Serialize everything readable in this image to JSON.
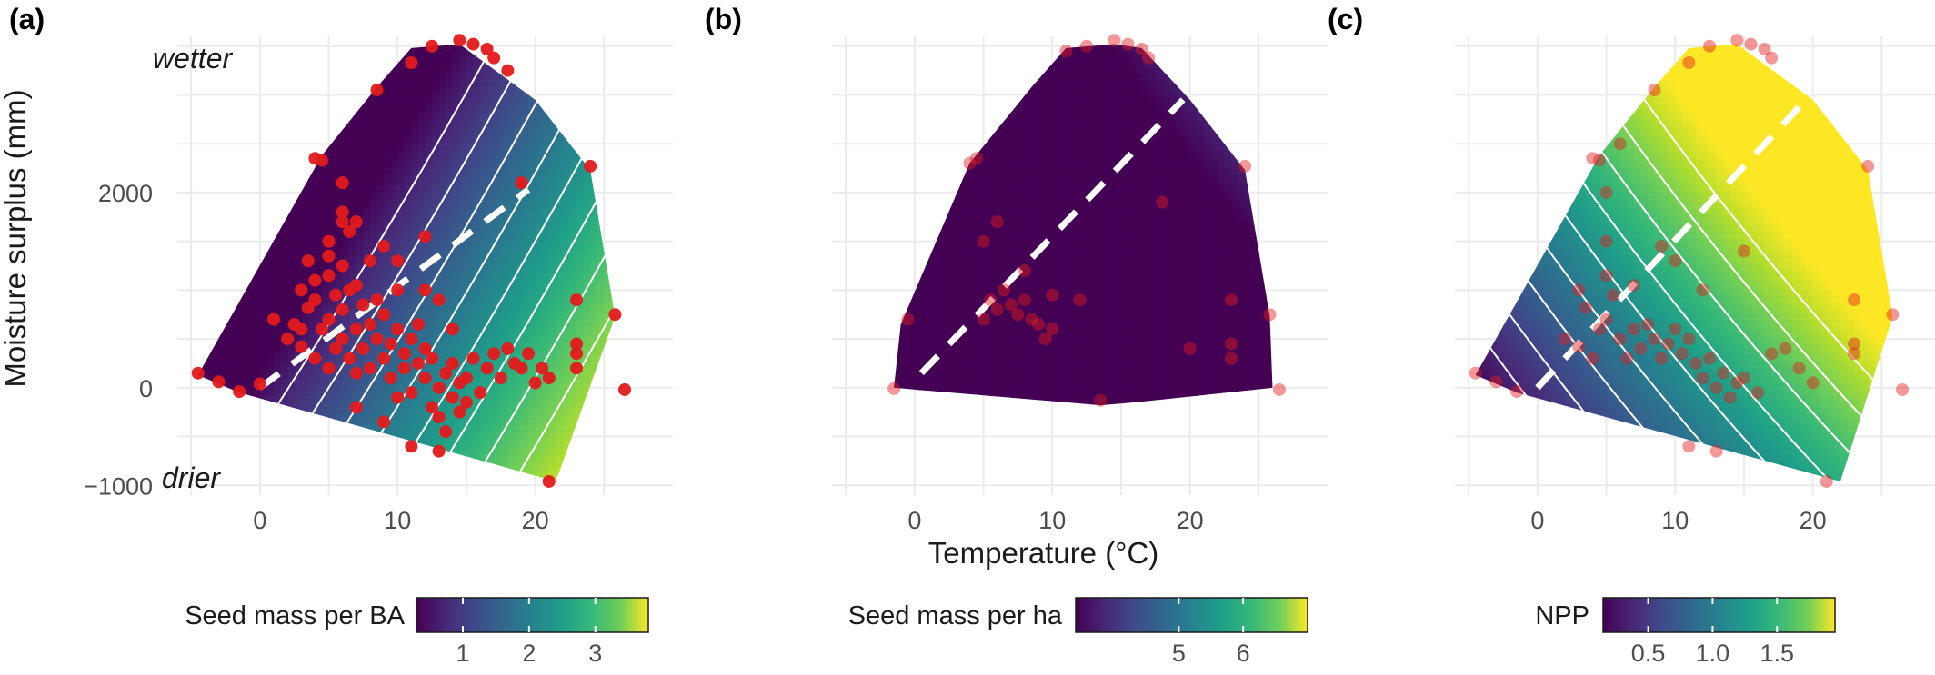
{
  "chart_data": [
    {
      "panel": "(a)",
      "type": "heatmap",
      "xlabel": "",
      "ylabel": "Moisture surplus (mm)",
      "x_ticks": [
        0,
        10,
        20
      ],
      "y_ticks": [
        -1000,
        0,
        2000
      ],
      "xlim": [
        -6,
        30
      ],
      "ylim": [
        -1100,
        3600
      ],
      "annotations": [
        "wetter",
        "drier"
      ],
      "legend": {
        "title": "Seed mass per BA",
        "ticks": [
          "1",
          "2",
          "3"
        ],
        "range": [
          0.3,
          3.8
        ],
        "colormap": "viridis"
      },
      "surface": {
        "a": 0.12,
        "b": -0.00055
      },
      "dashed_line": {
        "from": [
          0,
          0
        ],
        "to": [
          19.5,
          2030
        ]
      },
      "boundary": [
        [
          -4.5,
          130
        ],
        [
          -1.5,
          -50
        ],
        [
          21.5,
          -960
        ],
        [
          25.8,
          730
        ],
        [
          24,
          2230
        ],
        [
          20,
          2950
        ],
        [
          14.5,
          3520
        ],
        [
          11,
          3480
        ],
        [
          8.5,
          3080
        ],
        [
          4.5,
          2380
        ],
        [
          -4.5,
          130
        ]
      ],
      "points": [
        [
          -4.5,
          150
        ],
        [
          -3,
          60
        ],
        [
          -1.5,
          -40
        ],
        [
          0,
          40
        ],
        [
          1,
          700
        ],
        [
          3,
          600
        ],
        [
          4,
          2350
        ],
        [
          4.5,
          2330
        ],
        [
          5,
          1350
        ],
        [
          6,
          2100
        ],
        [
          6,
          1700
        ],
        [
          7,
          1700
        ],
        [
          6.5,
          1600
        ],
        [
          8.5,
          3050
        ],
        [
          10,
          1000
        ],
        [
          11,
          3330
        ],
        [
          12,
          1550
        ],
        [
          12.5,
          3500
        ],
        [
          13,
          900
        ],
        [
          14.5,
          3560
        ],
        [
          15.5,
          3520
        ],
        [
          16.5,
          3470
        ],
        [
          17,
          3380
        ],
        [
          18,
          3250
        ],
        [
          19,
          2100
        ],
        [
          21,
          -960
        ],
        [
          24,
          2270
        ],
        [
          23,
          900
        ],
        [
          23,
          450
        ],
        [
          23,
          350
        ],
        [
          23,
          200
        ],
        [
          25.8,
          750
        ],
        [
          26.5,
          -20
        ],
        [
          2,
          500
        ],
        [
          2.5,
          650
        ],
        [
          3,
          420
        ],
        [
          3.5,
          820
        ],
        [
          4,
          300
        ],
        [
          4,
          900
        ],
        [
          4.5,
          600
        ],
        [
          5,
          700
        ],
        [
          5,
          200
        ],
        [
          5.5,
          950
        ],
        [
          5.5,
          400
        ],
        [
          6,
          500
        ],
        [
          6,
          800
        ],
        [
          6.5,
          300
        ],
        [
          6.5,
          1000
        ],
        [
          7,
          600
        ],
        [
          7,
          150
        ],
        [
          7.5,
          400
        ],
        [
          7.5,
          850
        ],
        [
          8,
          200
        ],
        [
          8,
          650
        ],
        [
          8.5,
          500
        ],
        [
          8.5,
          900
        ],
        [
          9,
          300
        ],
        [
          9,
          750
        ],
        [
          9.5,
          100
        ],
        [
          9.5,
          450
        ],
        [
          10,
          600
        ],
        [
          10,
          -100
        ],
        [
          10.5,
          350
        ],
        [
          10.5,
          200
        ],
        [
          11,
          500
        ],
        [
          11,
          -50
        ],
        [
          11.5,
          250
        ],
        [
          11.5,
          650
        ],
        [
          12,
          100
        ],
        [
          12,
          400
        ],
        [
          12.5,
          -200
        ],
        [
          12.5,
          300
        ],
        [
          13,
          0
        ],
        [
          13,
          -300
        ],
        [
          13.5,
          150
        ],
        [
          13.5,
          -450
        ],
        [
          14,
          -100
        ],
        [
          14,
          250
        ],
        [
          14.5,
          50
        ],
        [
          14.5,
          -250
        ],
        [
          15,
          100
        ],
        [
          15,
          -150
        ],
        [
          15.5,
          300
        ],
        [
          16,
          -50
        ],
        [
          16.5,
          200
        ],
        [
          17,
          350
        ],
        [
          17.5,
          100
        ],
        [
          18,
          400
        ],
        [
          18.5,
          250
        ],
        [
          19,
          200
        ],
        [
          19.5,
          350
        ],
        [
          20,
          50
        ],
        [
          20.5,
          200
        ],
        [
          21,
          100
        ],
        [
          3,
          1000
        ],
        [
          4,
          1100
        ],
        [
          5,
          1150
        ],
        [
          6,
          1250
        ],
        [
          7,
          1050
        ],
        [
          8,
          1300
        ],
        [
          9,
          1450
        ],
        [
          5,
          1500
        ],
        [
          3.5,
          1300
        ],
        [
          6,
          1800
        ],
        [
          10,
          1300
        ],
        [
          12,
          1000
        ],
        [
          14,
          600
        ],
        [
          13,
          -650
        ],
        [
          9,
          -350
        ],
        [
          11,
          -600
        ],
        [
          7,
          -200
        ]
      ]
    },
    {
      "panel": "(b)",
      "type": "heatmap",
      "xlabel": "Temperature (°C)",
      "ylabel": "",
      "x_ticks": [
        0,
        10,
        20
      ],
      "y_ticks": [],
      "xlim": [
        -6,
        30
      ],
      "ylim": [
        -1100,
        3600
      ],
      "annotations": [],
      "legend": {
        "title": "Seed mass per ha",
        "ticks": [
          "5",
          "6"
        ],
        "range": [
          3.4,
          7.0
        ],
        "colormap": "viridis"
      },
      "surface": {
        "a": 0.09,
        "b": 0.00045
      },
      "dashed_line": {
        "from": [
          0.5,
          150
        ],
        "to": [
          19.5,
          2950
        ]
      },
      "boundary": [
        [
          -1.5,
          0
        ],
        [
          -1,
          650
        ],
        [
          4,
          2300
        ],
        [
          8.5,
          3080
        ],
        [
          11,
          3480
        ],
        [
          14.5,
          3520
        ],
        [
          16.5,
          3480
        ],
        [
          20,
          2950
        ],
        [
          24,
          2230
        ],
        [
          25.8,
          730
        ],
        [
          26,
          0
        ],
        [
          16,
          -150
        ],
        [
          13.5,
          -180
        ],
        [
          -1.5,
          0
        ]
      ],
      "points": [
        [
          -1.5,
          -10
        ],
        [
          -0.5,
          700
        ],
        [
          4.5,
          2350
        ],
        [
          4,
          2300
        ],
        [
          11,
          3450
        ],
        [
          12.5,
          3500
        ],
        [
          14.5,
          3560
        ],
        [
          15.5,
          3520
        ],
        [
          16.5,
          3470
        ],
        [
          17,
          3380
        ],
        [
          24,
          2270
        ],
        [
          25.8,
          750
        ],
        [
          26.5,
          -20
        ],
        [
          13.5,
          -130
        ],
        [
          5,
          700
        ],
        [
          5.5,
          900
        ],
        [
          6,
          800
        ],
        [
          6.5,
          1000
        ],
        [
          7,
          850
        ],
        [
          7.5,
          750
        ],
        [
          8,
          900
        ],
        [
          8.5,
          700
        ],
        [
          9,
          650
        ],
        [
          9.5,
          500
        ],
        [
          10,
          600
        ],
        [
          5,
          1500
        ],
        [
          6,
          1700
        ],
        [
          8,
          1200
        ],
        [
          10,
          950
        ],
        [
          12,
          900
        ],
        [
          18,
          1900
        ],
        [
          23,
          900
        ],
        [
          23,
          450
        ],
        [
          23,
          300
        ],
        [
          20,
          400
        ]
      ]
    },
    {
      "panel": "(c)",
      "type": "heatmap",
      "xlabel": "",
      "ylabel": "",
      "x_ticks": [
        0,
        10,
        20
      ],
      "y_ticks": [],
      "xlim": [
        -6,
        30
      ],
      "ylim": [
        -1100,
        3600
      ],
      "annotations": [],
      "legend": {
        "title": "NPP",
        "ticks": [
          "0.5",
          "1.0",
          "1.5"
        ],
        "range": [
          0.15,
          1.95
        ],
        "colormap": "viridis"
      },
      "surface": {
        "a": 0.055,
        "b": 0.0003
      },
      "dashed_line": {
        "from": [
          0,
          0
        ],
        "to": [
          19.5,
          2950
        ]
      },
      "boundary": [
        [
          -4.5,
          130
        ],
        [
          -1.5,
          -50
        ],
        [
          22,
          -960
        ],
        [
          25.8,
          730
        ],
        [
          24,
          2230
        ],
        [
          20,
          2950
        ],
        [
          14.5,
          3520
        ],
        [
          11,
          3480
        ],
        [
          8.5,
          3080
        ],
        [
          4.5,
          2380
        ],
        [
          -4.5,
          130
        ]
      ],
      "points": [
        [
          -4.5,
          150
        ],
        [
          -3,
          60
        ],
        [
          -1.5,
          -40
        ],
        [
          4,
          2350
        ],
        [
          4.5,
          2330
        ],
        [
          5,
          2000
        ],
        [
          6,
          2500
        ],
        [
          8.5,
          3050
        ],
        [
          11,
          3330
        ],
        [
          12.5,
          3500
        ],
        [
          14.5,
          3560
        ],
        [
          15.5,
          3520
        ],
        [
          16.5,
          3470
        ],
        [
          17,
          3380
        ],
        [
          21,
          -960
        ],
        [
          24,
          2270
        ],
        [
          23,
          900
        ],
        [
          23,
          450
        ],
        [
          23,
          350
        ],
        [
          25.8,
          750
        ],
        [
          26.5,
          -20
        ],
        [
          2,
          500
        ],
        [
          3,
          420
        ],
        [
          3.5,
          820
        ],
        [
          4,
          300
        ],
        [
          4.5,
          600
        ],
        [
          5,
          700
        ],
        [
          5.5,
          950
        ],
        [
          6,
          500
        ],
        [
          6.5,
          300
        ],
        [
          7,
          600
        ],
        [
          7.5,
          400
        ],
        [
          8,
          650
        ],
        [
          8.5,
          500
        ],
        [
          9,
          300
        ],
        [
          9.5,
          450
        ],
        [
          10,
          600
        ],
        [
          10.5,
          350
        ],
        [
          11,
          500
        ],
        [
          11.5,
          250
        ],
        [
          12,
          100
        ],
        [
          12.5,
          300
        ],
        [
          13,
          0
        ],
        [
          13.5,
          150
        ],
        [
          14,
          -100
        ],
        [
          14.5,
          50
        ],
        [
          15,
          100
        ],
        [
          16,
          -50
        ],
        [
          17,
          350
        ],
        [
          18,
          400
        ],
        [
          19,
          200
        ],
        [
          20,
          50
        ],
        [
          3,
          1000
        ],
        [
          5,
          1150
        ],
        [
          7,
          1050
        ],
        [
          9,
          1450
        ],
        [
          5,
          1500
        ],
        [
          10,
          1300
        ],
        [
          12,
          1000
        ],
        [
          13,
          -650
        ],
        [
          11,
          -600
        ],
        [
          15,
          1400
        ]
      ]
    }
  ]
}
